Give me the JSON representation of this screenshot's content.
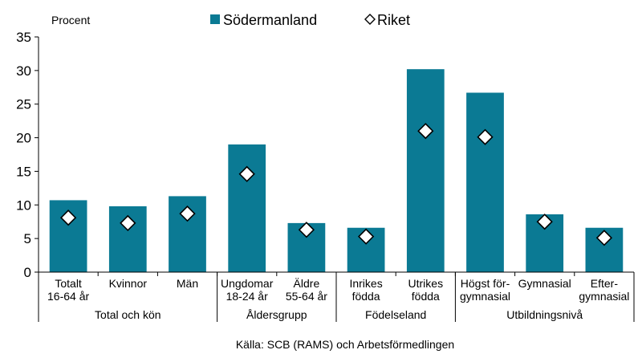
{
  "chart_data": {
    "type": "bar",
    "ylabel": "Procent",
    "ylim": [
      0,
      35
    ],
    "yticks": [
      0,
      5,
      10,
      15,
      20,
      25,
      30,
      35
    ],
    "grid": false,
    "legend_position": "top-center",
    "categories": [
      [
        "Totalt",
        "16-64 år"
      ],
      [
        "Kvinnor"
      ],
      [
        "Män"
      ],
      [
        "Ungdomar",
        "18-24 år"
      ],
      [
        "Äldre",
        "55-64 år"
      ],
      [
        "Inrikes",
        "födda"
      ],
      [
        "Utrikes",
        "födda"
      ],
      [
        "Högst för-",
        "gymnasial"
      ],
      [
        "Gymnasial"
      ],
      [
        "Efter-",
        "gymnasial"
      ]
    ],
    "groups": [
      {
        "label": "Total och kön",
        "count": 3
      },
      {
        "label": "Åldersgrupp",
        "count": 2
      },
      {
        "label": "Födelseland",
        "count": 2
      },
      {
        "label": "Utbildningsnivå",
        "count": 3
      }
    ],
    "series": [
      {
        "name": "Södermanland",
        "kind": "bar",
        "color": "#0b7a94",
        "values": [
          10.7,
          9.8,
          11.3,
          19.0,
          7.3,
          6.6,
          30.2,
          26.7,
          8.6,
          6.6
        ]
      },
      {
        "name": "Riket",
        "kind": "marker",
        "marker": "diamond",
        "values": [
          8.1,
          7.3,
          8.7,
          14.6,
          6.3,
          5.3,
          21.0,
          20.1,
          7.5,
          5.1
        ]
      }
    ],
    "source": "Källa: SCB (RAMS) och Arbetsförmedlingen"
  }
}
